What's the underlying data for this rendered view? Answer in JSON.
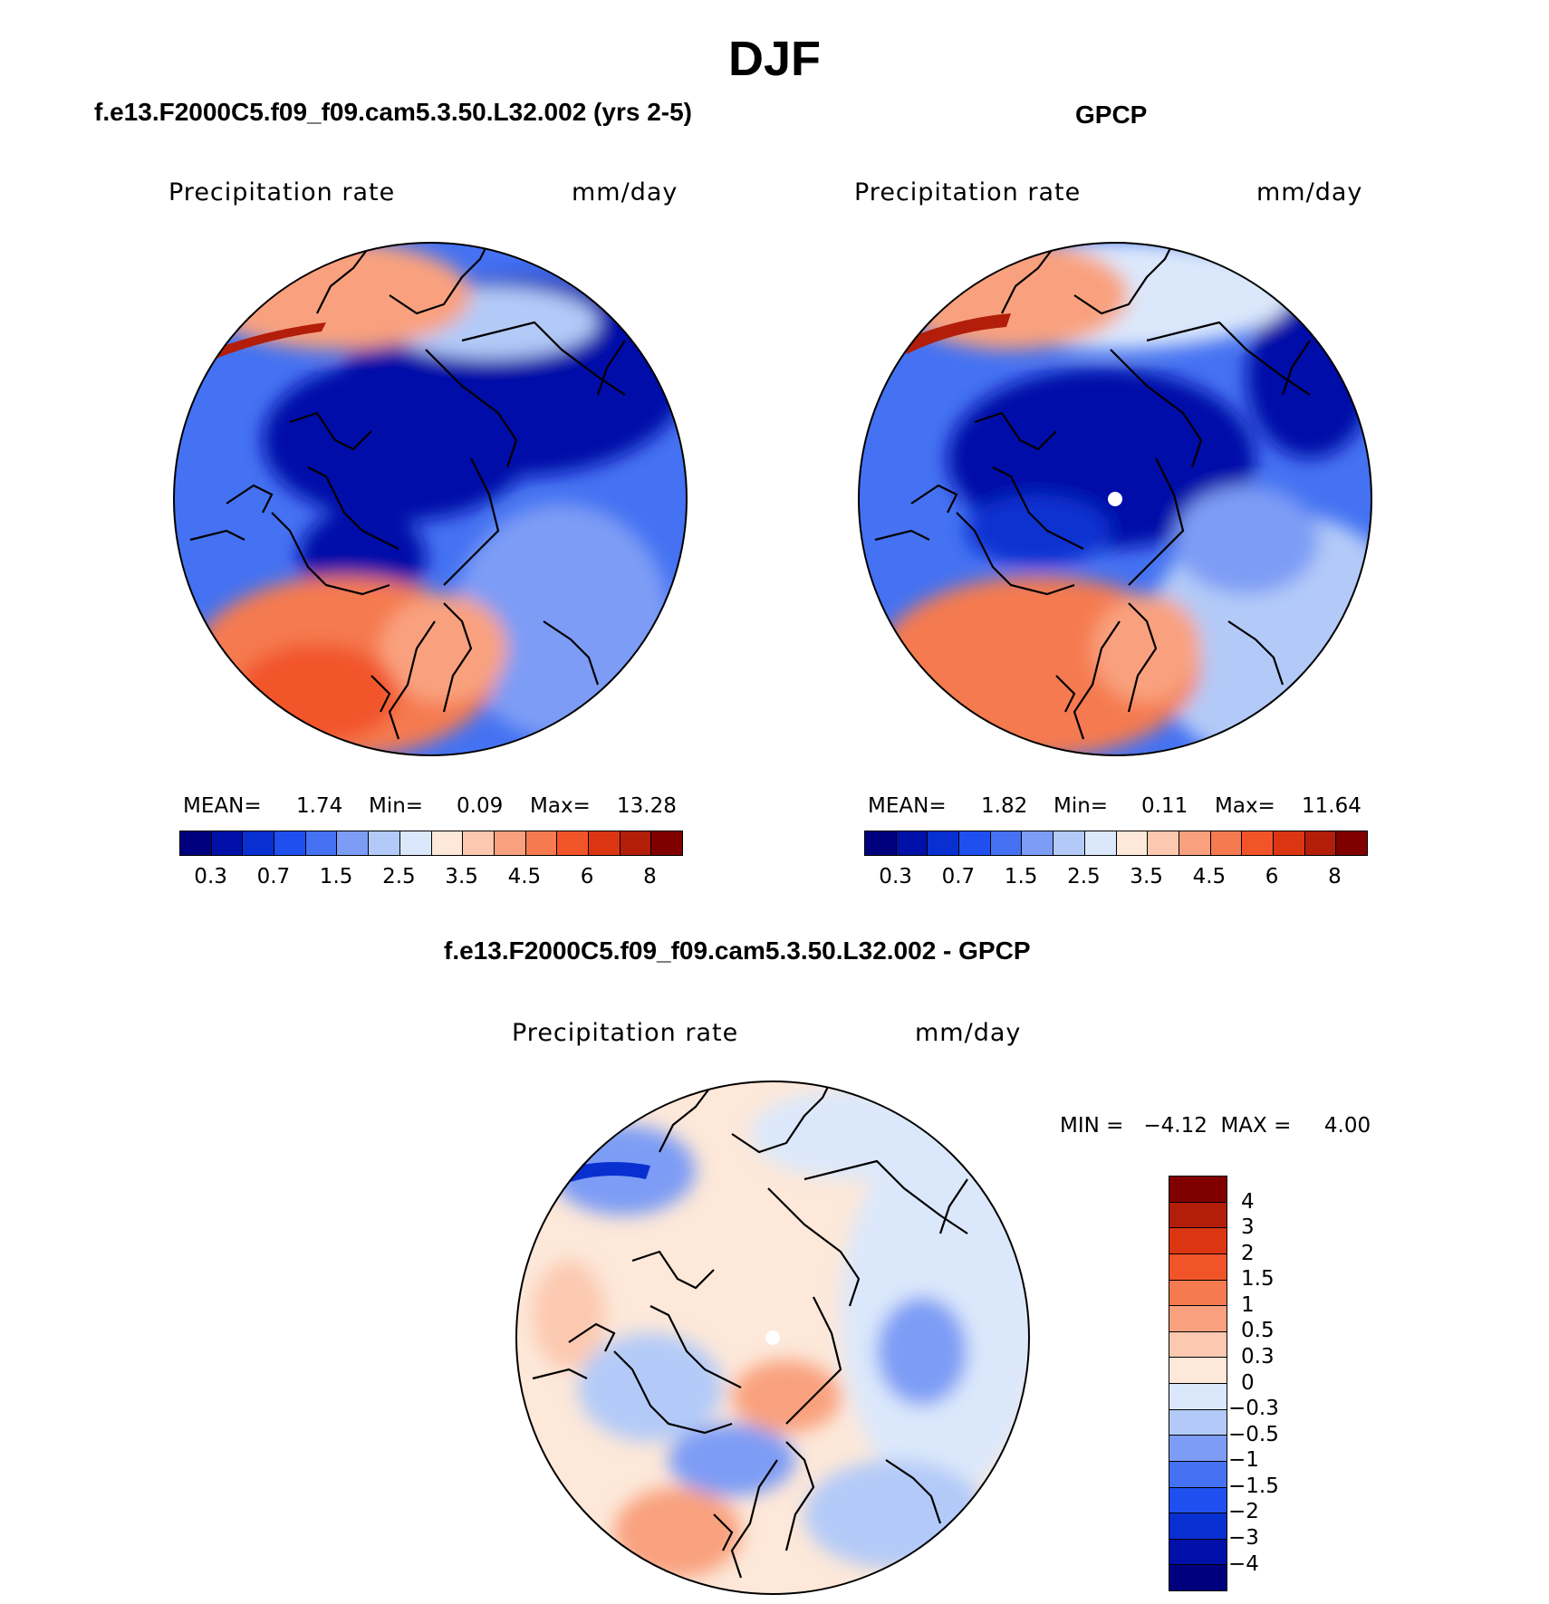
{
  "season": "DJF",
  "panels": [
    {
      "title": "f.e13.F2000C5.f09_f09.cam5.3.50.L32.002 (yrs 2-5)",
      "variable": "Precipitation  rate",
      "units": "mm/day",
      "mean_label": "MEAN=",
      "mean": "1.74",
      "min_label": "Min=",
      "min": "0.09",
      "max_label": "Max=",
      "max": "13.28"
    },
    {
      "title": "GPCP",
      "variable": "Precipitation  rate",
      "units": "mm/day",
      "mean_label": "MEAN=",
      "mean": "1.82",
      "min_label": "Min=",
      "min": "0.11",
      "max_label": "Max=",
      "max": "11.64"
    },
    {
      "title": "f.e13.F2000C5.f09_f09.cam5.3.50.L32.002 - GPCP",
      "variable": "Precipitation  rate",
      "units": "mm/day",
      "minmax_text": "MIN =   −4.12  MAX =     4.00"
    }
  ],
  "colorbar_abs": {
    "colors": [
      "#00007f",
      "#0010a8",
      "#0830d0",
      "#1f50ef",
      "#4472f2",
      "#7d9cf5",
      "#b3caf8",
      "#dbe8fb",
      "#fde8d9",
      "#fcc9b0",
      "#f9a17e",
      "#f57a50",
      "#f2542a",
      "#dc3512",
      "#b21e0a",
      "#800000"
    ],
    "ticks": [
      "0.3",
      "0.7",
      "1.5",
      "2.5",
      "3.5",
      "4.5",
      "6",
      "8"
    ]
  },
  "colorbar_diff": {
    "colors": [
      "#800000",
      "#b21e0a",
      "#dc3512",
      "#f2542a",
      "#f57a50",
      "#f9a17e",
      "#fcc9b0",
      "#fde8d9",
      "#dbe8fb",
      "#b3caf8",
      "#7d9cf5",
      "#4472f2",
      "#1f50ef",
      "#0830d0",
      "#0010a8",
      "#00007f"
    ],
    "ticks": [
      "4",
      "3",
      "2",
      "1.5",
      "1",
      "0.5",
      "0.3",
      "0",
      "−0.3",
      "−0.5",
      "−1",
      "−1.5",
      "−2",
      "−3",
      "−4"
    ]
  }
}
